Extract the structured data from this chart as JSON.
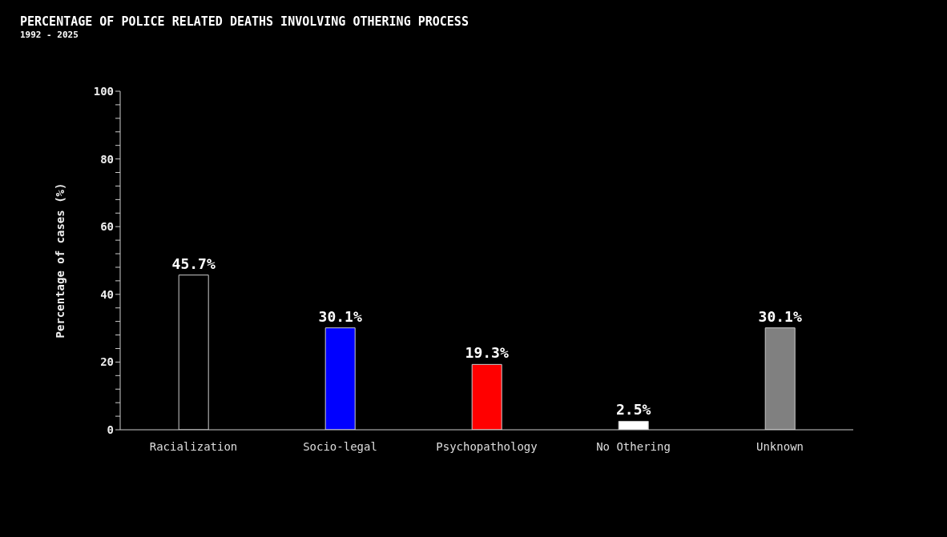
{
  "chart_data": {
    "type": "bar",
    "title": "PERCENTAGE OF POLICE RELATED DEATHS INVOLVING OTHERING PROCESS",
    "subtitle": "1992 - 2025",
    "ylabel": "Percentage of cases (%)",
    "categories": [
      "Racialization",
      "Socio-legal",
      "Psychopathology",
      "No Othering",
      "Unknown"
    ],
    "values": [
      45.7,
      30.1,
      19.3,
      2.5,
      30.1
    ],
    "value_labels": [
      "45.7%",
      "30.1%",
      "19.3%",
      "2.5%",
      "30.1%"
    ],
    "colors": [
      "#000000",
      "#0000ff",
      "#ff0000",
      "#ffffff",
      "#808080"
    ],
    "ylim": [
      0,
      100
    ],
    "yticks": [
      0,
      {
        "value": 4,
        "label": null
      },
      {
        "value": 8,
        "label": null
      },
      {
        "value": 12,
        "label": null
      },
      {
        "value": 16,
        "label": null
      },
      20,
      {
        "value": 24,
        "label": null
      },
      {
        "value": 28,
        "label": null
      },
      {
        "value": 32,
        "label": null
      },
      {
        "value": 36,
        "label": null
      },
      40,
      {
        "value": 44,
        "label": null
      },
      {
        "value": 48,
        "label": null
      },
      {
        "value": 52,
        "label": null
      },
      {
        "value": 56,
        "label": null
      },
      60,
      {
        "value": 64,
        "label": null
      },
      {
        "value": 68,
        "label": null
      },
      {
        "value": 72,
        "label": null
      },
      {
        "value": 76,
        "label": null
      },
      80,
      {
        "value": 84,
        "label": null
      },
      {
        "value": 88,
        "label": null
      },
      {
        "value": 92,
        "label": null
      },
      {
        "value": 96,
        "label": null
      },
      100
    ],
    "grid": false,
    "legend": false
  }
}
